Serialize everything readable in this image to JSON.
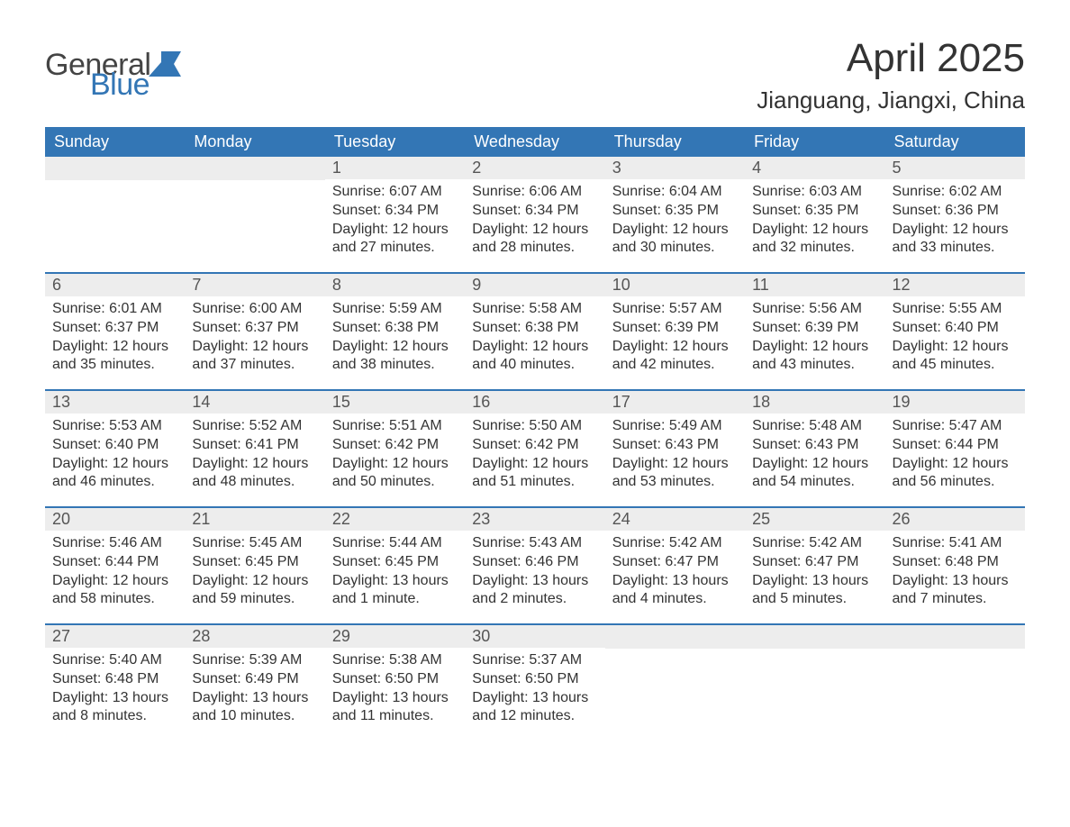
{
  "logo": {
    "text_general": "General",
    "text_blue": "Blue"
  },
  "title": "April 2025",
  "location": "Jianguang, Jiangxi, China",
  "theme": {
    "header_bg": "#3376b5",
    "header_text": "#ffffff",
    "day_number_bg": "#ededed",
    "body_text": "#333333",
    "week_border": "#3376b5",
    "page_bg": "#ffffff",
    "logo_blue": "#3376b5",
    "logo_dark": "#444444"
  },
  "weekdays": [
    "Sunday",
    "Monday",
    "Tuesday",
    "Wednesday",
    "Thursday",
    "Friday",
    "Saturday"
  ],
  "weeks": [
    [
      null,
      null,
      {
        "n": "1",
        "sunrise": "Sunrise: 6:07 AM",
        "sunset": "Sunset: 6:34 PM",
        "daylight": "Daylight: 12 hours and 27 minutes."
      },
      {
        "n": "2",
        "sunrise": "Sunrise: 6:06 AM",
        "sunset": "Sunset: 6:34 PM",
        "daylight": "Daylight: 12 hours and 28 minutes."
      },
      {
        "n": "3",
        "sunrise": "Sunrise: 6:04 AM",
        "sunset": "Sunset: 6:35 PM",
        "daylight": "Daylight: 12 hours and 30 minutes."
      },
      {
        "n": "4",
        "sunrise": "Sunrise: 6:03 AM",
        "sunset": "Sunset: 6:35 PM",
        "daylight": "Daylight: 12 hours and 32 minutes."
      },
      {
        "n": "5",
        "sunrise": "Sunrise: 6:02 AM",
        "sunset": "Sunset: 6:36 PM",
        "daylight": "Daylight: 12 hours and 33 minutes."
      }
    ],
    [
      {
        "n": "6",
        "sunrise": "Sunrise: 6:01 AM",
        "sunset": "Sunset: 6:37 PM",
        "daylight": "Daylight: 12 hours and 35 minutes."
      },
      {
        "n": "7",
        "sunrise": "Sunrise: 6:00 AM",
        "sunset": "Sunset: 6:37 PM",
        "daylight": "Daylight: 12 hours and 37 minutes."
      },
      {
        "n": "8",
        "sunrise": "Sunrise: 5:59 AM",
        "sunset": "Sunset: 6:38 PM",
        "daylight": "Daylight: 12 hours and 38 minutes."
      },
      {
        "n": "9",
        "sunrise": "Sunrise: 5:58 AM",
        "sunset": "Sunset: 6:38 PM",
        "daylight": "Daylight: 12 hours and 40 minutes."
      },
      {
        "n": "10",
        "sunrise": "Sunrise: 5:57 AM",
        "sunset": "Sunset: 6:39 PM",
        "daylight": "Daylight: 12 hours and 42 minutes."
      },
      {
        "n": "11",
        "sunrise": "Sunrise: 5:56 AM",
        "sunset": "Sunset: 6:39 PM",
        "daylight": "Daylight: 12 hours and 43 minutes."
      },
      {
        "n": "12",
        "sunrise": "Sunrise: 5:55 AM",
        "sunset": "Sunset: 6:40 PM",
        "daylight": "Daylight: 12 hours and 45 minutes."
      }
    ],
    [
      {
        "n": "13",
        "sunrise": "Sunrise: 5:53 AM",
        "sunset": "Sunset: 6:40 PM",
        "daylight": "Daylight: 12 hours and 46 minutes."
      },
      {
        "n": "14",
        "sunrise": "Sunrise: 5:52 AM",
        "sunset": "Sunset: 6:41 PM",
        "daylight": "Daylight: 12 hours and 48 minutes."
      },
      {
        "n": "15",
        "sunrise": "Sunrise: 5:51 AM",
        "sunset": "Sunset: 6:42 PM",
        "daylight": "Daylight: 12 hours and 50 minutes."
      },
      {
        "n": "16",
        "sunrise": "Sunrise: 5:50 AM",
        "sunset": "Sunset: 6:42 PM",
        "daylight": "Daylight: 12 hours and 51 minutes."
      },
      {
        "n": "17",
        "sunrise": "Sunrise: 5:49 AM",
        "sunset": "Sunset: 6:43 PM",
        "daylight": "Daylight: 12 hours and 53 minutes."
      },
      {
        "n": "18",
        "sunrise": "Sunrise: 5:48 AM",
        "sunset": "Sunset: 6:43 PM",
        "daylight": "Daylight: 12 hours and 54 minutes."
      },
      {
        "n": "19",
        "sunrise": "Sunrise: 5:47 AM",
        "sunset": "Sunset: 6:44 PM",
        "daylight": "Daylight: 12 hours and 56 minutes."
      }
    ],
    [
      {
        "n": "20",
        "sunrise": "Sunrise: 5:46 AM",
        "sunset": "Sunset: 6:44 PM",
        "daylight": "Daylight: 12 hours and 58 minutes."
      },
      {
        "n": "21",
        "sunrise": "Sunrise: 5:45 AM",
        "sunset": "Sunset: 6:45 PM",
        "daylight": "Daylight: 12 hours and 59 minutes."
      },
      {
        "n": "22",
        "sunrise": "Sunrise: 5:44 AM",
        "sunset": "Sunset: 6:45 PM",
        "daylight": "Daylight: 13 hours and 1 minute."
      },
      {
        "n": "23",
        "sunrise": "Sunrise: 5:43 AM",
        "sunset": "Sunset: 6:46 PM",
        "daylight": "Daylight: 13 hours and 2 minutes."
      },
      {
        "n": "24",
        "sunrise": "Sunrise: 5:42 AM",
        "sunset": "Sunset: 6:47 PM",
        "daylight": "Daylight: 13 hours and 4 minutes."
      },
      {
        "n": "25",
        "sunrise": "Sunrise: 5:42 AM",
        "sunset": "Sunset: 6:47 PM",
        "daylight": "Daylight: 13 hours and 5 minutes."
      },
      {
        "n": "26",
        "sunrise": "Sunrise: 5:41 AM",
        "sunset": "Sunset: 6:48 PM",
        "daylight": "Daylight: 13 hours and 7 minutes."
      }
    ],
    [
      {
        "n": "27",
        "sunrise": "Sunrise: 5:40 AM",
        "sunset": "Sunset: 6:48 PM",
        "daylight": "Daylight: 13 hours and 8 minutes."
      },
      {
        "n": "28",
        "sunrise": "Sunrise: 5:39 AM",
        "sunset": "Sunset: 6:49 PM",
        "daylight": "Daylight: 13 hours and 10 minutes."
      },
      {
        "n": "29",
        "sunrise": "Sunrise: 5:38 AM",
        "sunset": "Sunset: 6:50 PM",
        "daylight": "Daylight: 13 hours and 11 minutes."
      },
      {
        "n": "30",
        "sunrise": "Sunrise: 5:37 AM",
        "sunset": "Sunset: 6:50 PM",
        "daylight": "Daylight: 13 hours and 12 minutes."
      },
      null,
      null,
      null
    ]
  ]
}
